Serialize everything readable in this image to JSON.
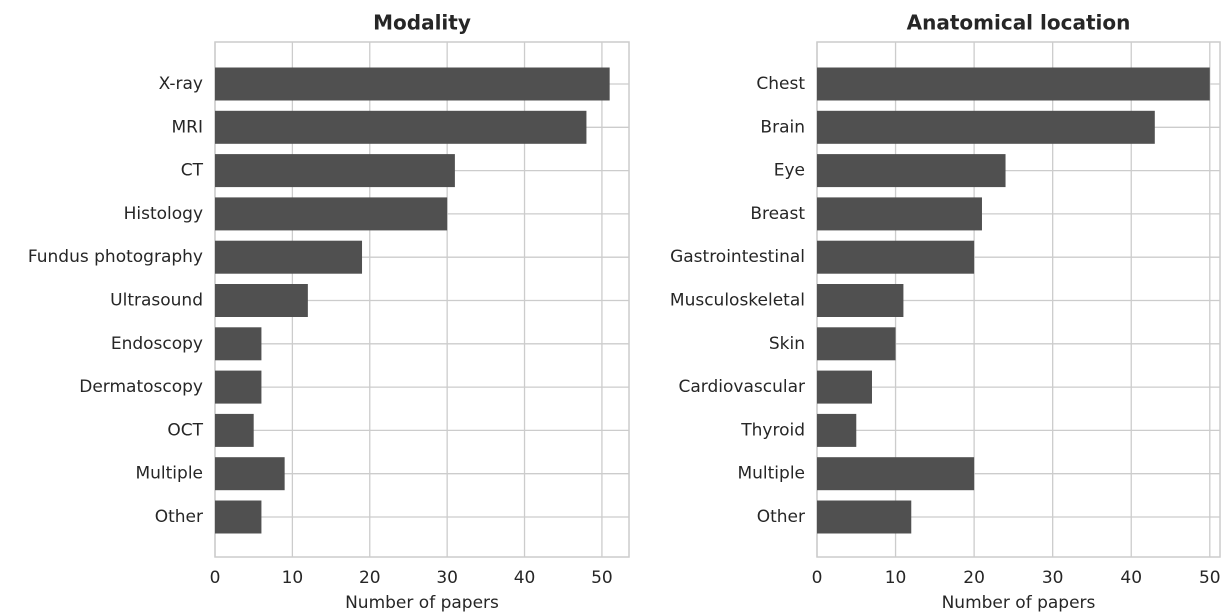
{
  "chart_data": [
    {
      "type": "barh",
      "title": "Modality",
      "xlabel": "Number of papers",
      "categories": [
        "X-ray",
        "MRI",
        "CT",
        "Histology",
        "Fundus photography",
        "Ultrasound",
        "Endoscopy",
        "Dermatoscopy",
        "OCT",
        "Multiple",
        "Other"
      ],
      "values": [
        51,
        48,
        31,
        30,
        19,
        12,
        6,
        6,
        5,
        9,
        6
      ],
      "color": "#505050",
      "xlim": [
        0,
        53.5
      ],
      "xticks": [
        0,
        10,
        20,
        30,
        40,
        50
      ],
      "grid": true
    },
    {
      "type": "barh",
      "title": "Anatomical location",
      "xlabel": "Number of papers",
      "categories": [
        "Chest",
        "Brain",
        "Eye",
        "Breast",
        "Gastrointestinal",
        "Musculoskeletal",
        "Skin",
        "Cardiovascular",
        "Thyroid",
        "Multiple",
        "Other"
      ],
      "values": [
        50,
        43,
        24,
        21,
        20,
        11,
        10,
        7,
        5,
        20,
        12
      ],
      "color": "#505050",
      "xlim": [
        0,
        51.3
      ],
      "xticks": [
        0,
        10,
        20,
        30,
        40,
        50
      ],
      "grid": true
    }
  ]
}
